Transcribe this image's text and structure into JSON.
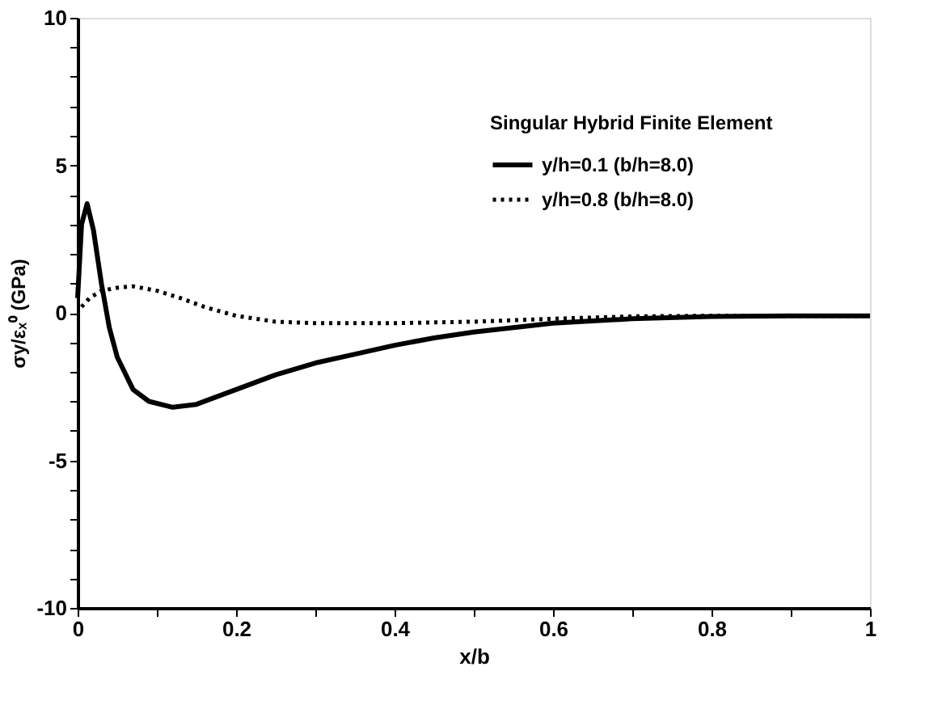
{
  "chart_data": {
    "type": "line",
    "xlabel": "x/b",
    "ylabel": "σy/εₓ⁰ (GPa)",
    "legend_title": "Singular Hybrid Finite Element",
    "xlim": [
      0,
      1
    ],
    "ylim": [
      -10,
      10
    ],
    "xticks": [
      0,
      {
        "value": 0.1,
        "label": null
      },
      0.2,
      {
        "value": 0.3,
        "label": null
      },
      0.4,
      {
        "value": 0.5,
        "label": null
      },
      0.6,
      {
        "value": 0.7,
        "label": null
      },
      0.8,
      {
        "value": 0.9,
        "label": null
      },
      1
    ],
    "yticks": [
      -10,
      {
        "value": -9,
        "label": null
      },
      {
        "value": -8,
        "label": null
      },
      {
        "value": -7,
        "label": null
      },
      {
        "value": -6,
        "label": null
      },
      -5,
      {
        "value": -4,
        "label": null
      },
      {
        "value": -3,
        "label": null
      },
      {
        "value": -2,
        "label": null
      },
      {
        "value": -1,
        "label": null
      },
      0,
      {
        "value": 1,
        "label": null
      },
      {
        "value": 2,
        "label": null
      },
      {
        "value": 3,
        "label": null
      },
      {
        "value": 4,
        "label": null
      },
      5,
      {
        "value": 6,
        "label": null
      },
      {
        "value": 7,
        "label": null
      },
      {
        "value": 8,
        "label": null
      },
      {
        "value": 9,
        "label": null
      },
      10
    ],
    "grid": false,
    "legend": "top right",
    "marker": "none",
    "series": [
      {
        "name": "y/h=0.1 (b/h=8.0)",
        "color": "#000000",
        "line_style": "solid",
        "x": [
          0,
          0.005,
          0.012,
          0.02,
          0.03,
          0.04,
          0.05,
          0.07,
          0.09,
          0.12,
          0.15,
          0.2,
          0.25,
          0.3,
          0.35,
          0.4,
          0.45,
          0.5,
          0.55,
          0.6,
          0.7,
          0.8,
          0.9,
          1.0
        ],
        "values": [
          0.5,
          3.0,
          3.7,
          2.8,
          1.0,
          -0.5,
          -1.5,
          -2.6,
          -3.0,
          -3.2,
          -3.1,
          -2.6,
          -2.1,
          -1.7,
          -1.4,
          -1.1,
          -0.85,
          -0.65,
          -0.5,
          -0.35,
          -0.2,
          -0.12,
          -0.1,
          -0.1
        ]
      },
      {
        "name": "y/h=0.8 (b/h=8.0)",
        "color": "#000000",
        "line_style": "dotted",
        "x": [
          0.005,
          0.015,
          0.03,
          0.05,
          0.07,
          0.1,
          0.13,
          0.16,
          0.2,
          0.25,
          0.3,
          0.4,
          0.5,
          0.6,
          0.7,
          0.8,
          0.9,
          1.0
        ],
        "values": [
          0.2,
          0.5,
          0.75,
          0.85,
          0.9,
          0.75,
          0.5,
          0.2,
          -0.1,
          -0.3,
          -0.35,
          -0.35,
          -0.3,
          -0.2,
          -0.12,
          -0.1,
          -0.1,
          -0.1
        ]
      }
    ]
  }
}
